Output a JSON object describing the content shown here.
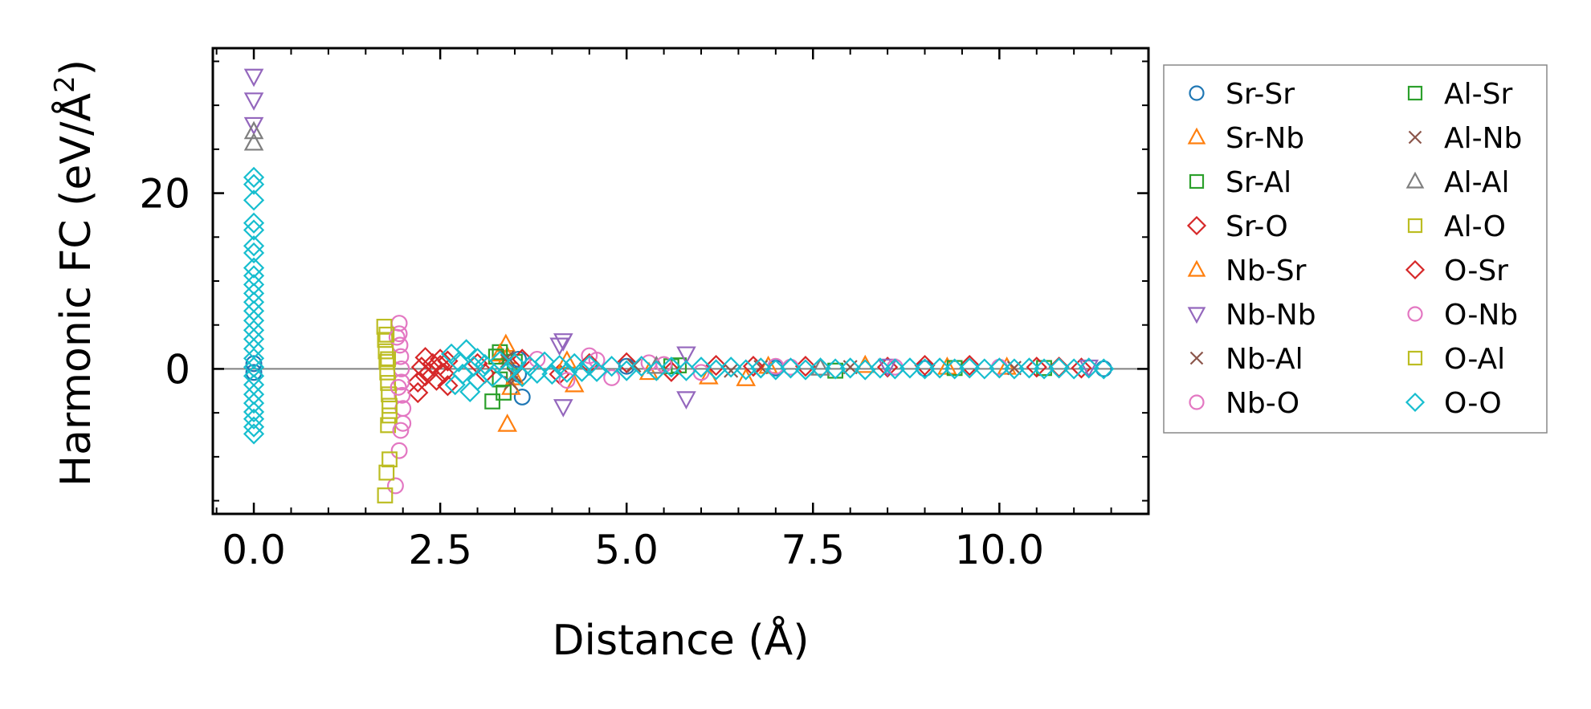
{
  "chart_data": {
    "type": "scatter",
    "title": "",
    "xlabel": "Distance (Å)",
    "ylabel": "Harmonic FC (eV/Å²)",
    "ylabel_parts": {
      "main": "Harmonic FC (eV/Å",
      "sup": "2",
      "close": ")"
    },
    "xlim": [
      -0.55,
      12.0
    ],
    "ylim": [
      -16.5,
      36.5
    ],
    "xticks": [
      0.0,
      2.5,
      5.0,
      7.5,
      10.0
    ],
    "xtick_labels": [
      "0.0",
      "2.5",
      "5.0",
      "7.5",
      "10.0"
    ],
    "yticks": [
      0,
      20
    ],
    "ytick_labels": [
      "0",
      "20"
    ],
    "zero_line": true,
    "legend_position": "outside-right",
    "series": [
      {
        "name": "Sr-Sr",
        "marker": "circle",
        "color": "#1f77b4",
        "points": [
          [
            0,
            0.6
          ],
          [
            0,
            -0.4
          ],
          [
            3.55,
            -0.6
          ],
          [
            3.6,
            -3.2
          ],
          [
            3.55,
            1.1
          ],
          [
            5.0,
            0.3
          ],
          [
            7.0,
            0.1
          ],
          [
            9.0,
            0.05
          ],
          [
            11.4,
            0.02
          ]
        ]
      },
      {
        "name": "Sr-Nb",
        "marker": "triangle-up",
        "color": "#ff7f0e",
        "points": [
          [
            3.38,
            2.8
          ],
          [
            3.4,
            -6.3
          ],
          [
            3.4,
            1.4
          ],
          [
            3.45,
            -2.1
          ],
          [
            4.3,
            -1.8
          ],
          [
            6.1,
            -0.9
          ],
          [
            6.6,
            -1.1
          ],
          [
            8.2,
            0.4
          ],
          [
            10.1,
            0.2
          ]
        ]
      },
      {
        "name": "Sr-Al",
        "marker": "square",
        "color": "#2ca02c",
        "points": [
          [
            3.2,
            -3.7
          ],
          [
            3.3,
            1.9
          ],
          [
            3.3,
            -1.2
          ],
          [
            3.5,
            0.8
          ],
          [
            5.7,
            0.4
          ],
          [
            7.8,
            -0.2
          ],
          [
            10.6,
            0.1
          ]
        ]
      },
      {
        "name": "Sr-O",
        "marker": "diamond",
        "color": "#d62728",
        "points": [
          [
            2.2,
            -2.7
          ],
          [
            2.2,
            -1.5
          ],
          [
            2.25,
            0.2
          ],
          [
            2.3,
            1.3
          ],
          [
            2.35,
            -0.4
          ],
          [
            2.4,
            0.6
          ],
          [
            2.45,
            -1.3
          ],
          [
            2.5,
            0.4
          ],
          [
            2.55,
            -0.5
          ],
          [
            2.6,
            0.9
          ],
          [
            2.6,
            -1.9
          ],
          [
            3.0,
            0.6
          ],
          [
            3.6,
            1.1
          ],
          [
            4.1,
            -0.6
          ],
          [
            5.0,
            0.7
          ],
          [
            5.6,
            -0.3
          ],
          [
            6.2,
            0.4
          ],
          [
            7.4,
            0.3
          ],
          [
            8.5,
            0.2
          ],
          [
            9.6,
            0.4
          ],
          [
            10.5,
            0.2
          ],
          [
            11.1,
            0.1
          ]
        ]
      },
      {
        "name": "Nb-Sr",
        "marker": "triangle-up",
        "color": "#ff7f0e",
        "points": [
          [
            3.3,
            1.7
          ],
          [
            3.5,
            -1.0
          ],
          [
            4.2,
            0.9
          ],
          [
            5.3,
            -0.4
          ],
          [
            6.9,
            0.3
          ],
          [
            9.3,
            0.2
          ]
        ]
      },
      {
        "name": "Nb-Nb",
        "marker": "triangle-down",
        "color": "#9467bd",
        "points": [
          [
            0,
            33.3
          ],
          [
            0,
            30.6
          ],
          [
            0,
            27.8
          ],
          [
            4.15,
            3.2
          ],
          [
            4.1,
            2.7
          ],
          [
            4.15,
            -4.3
          ],
          [
            5.8,
            1.7
          ],
          [
            5.8,
            -3.4
          ],
          [
            8.5,
            0.3
          ],
          [
            11.2,
            0.2
          ]
        ]
      },
      {
        "name": "Nb-Al",
        "marker": "x",
        "color": "#8c564b",
        "points": [
          [
            3.4,
            1.3
          ],
          [
            3.45,
            -1.6
          ],
          [
            5.1,
            0.4
          ],
          [
            6.4,
            -0.2
          ],
          [
            8.0,
            0.2
          ],
          [
            10.2,
            0.1
          ]
        ]
      },
      {
        "name": "Nb-O",
        "marker": "circle",
        "color": "#e377c2",
        "points": [
          [
            1.95,
            5.2
          ],
          [
            1.95,
            4.0
          ],
          [
            1.96,
            2.7
          ],
          [
            1.97,
            1.4
          ],
          [
            1.98,
            0.0
          ],
          [
            1.98,
            -1.5
          ],
          [
            1.99,
            -3.0
          ],
          [
            2.0,
            -4.5
          ],
          [
            2.0,
            -6.2
          ],
          [
            1.95,
            -9.3
          ],
          [
            1.9,
            -13.3
          ],
          [
            3.8,
            1.1
          ],
          [
            4.2,
            -1.3
          ],
          [
            4.5,
            1.5
          ],
          [
            4.8,
            -1.0
          ],
          [
            5.3,
            0.7
          ],
          [
            6.0,
            -0.4
          ],
          [
            7.0,
            0.3
          ],
          [
            8.6,
            0.2
          ],
          [
            10.0,
            0.2
          ]
        ]
      },
      {
        "name": "Al-Sr",
        "marker": "square",
        "color": "#2ca02c",
        "points": [
          [
            3.25,
            1.4
          ],
          [
            3.35,
            -2.7
          ],
          [
            5.6,
            0.3
          ],
          [
            9.4,
            0.1
          ]
        ]
      },
      {
        "name": "Al-Nb",
        "marker": "x",
        "color": "#8c564b",
        "points": [
          [
            3.4,
            0.9
          ],
          [
            3.5,
            -0.8
          ],
          [
            6.8,
            0.2
          ]
        ]
      },
      {
        "name": "Al-Al",
        "marker": "triangle-up",
        "color": "#7f7f7f",
        "points": [
          [
            0,
            27.0
          ],
          [
            0,
            25.7
          ],
          [
            5.4,
            0.3
          ],
          [
            7.6,
            0.1
          ]
        ]
      },
      {
        "name": "Al-O",
        "marker": "square",
        "color": "#bcbd22",
        "points": [
          [
            1.75,
            4.8
          ],
          [
            1.76,
            3.3
          ],
          [
            1.77,
            2.0
          ],
          [
            1.78,
            0.8
          ],
          [
            1.79,
            -0.4
          ],
          [
            1.8,
            -1.6
          ],
          [
            1.81,
            -2.9
          ],
          [
            1.82,
            -4.2
          ],
          [
            1.8,
            -6.4
          ],
          [
            1.82,
            -10.3
          ],
          [
            1.78,
            -11.8
          ],
          [
            1.76,
            -14.4
          ]
        ]
      },
      {
        "name": "O-Sr",
        "marker": "diamond",
        "color": "#d62728",
        "points": [
          [
            2.3,
            -0.8
          ],
          [
            2.5,
            1.1
          ],
          [
            3.1,
            -0.5
          ],
          [
            4.5,
            0.6
          ],
          [
            6.7,
            0.3
          ],
          [
            9.0,
            0.4
          ],
          [
            10.8,
            0.2
          ]
        ]
      },
      {
        "name": "O-Nb",
        "marker": "circle",
        "color": "#e377c2",
        "points": [
          [
            1.92,
            3.6
          ],
          [
            1.94,
            -2.1
          ],
          [
            1.97,
            -7.0
          ],
          [
            4.6,
            1.0
          ],
          [
            5.5,
            0.5
          ],
          [
            7.2,
            0.2
          ]
        ]
      },
      {
        "name": "O-Al",
        "marker": "square",
        "color": "#bcbd22",
        "points": [
          [
            1.8,
            1.1
          ],
          [
            1.82,
            -5.3
          ],
          [
            1.78,
            3.9
          ]
        ]
      },
      {
        "name": "O-O",
        "marker": "diamond",
        "color": "#17becf",
        "points": [
          [
            0,
            21.8
          ],
          [
            0,
            21.0
          ],
          [
            0,
            19.2
          ],
          [
            0,
            16.6
          ],
          [
            0,
            15.8
          ],
          [
            0,
            14.0
          ],
          [
            0,
            13.2
          ],
          [
            0,
            11.5
          ],
          [
            0,
            10.6
          ],
          [
            0,
            9.6
          ],
          [
            0,
            8.6
          ],
          [
            0,
            7.6
          ],
          [
            0,
            6.6
          ],
          [
            0,
            5.5
          ],
          [
            0,
            4.4
          ],
          [
            0,
            3.4
          ],
          [
            0,
            2.3
          ],
          [
            0,
            1.2
          ],
          [
            0,
            0.2
          ],
          [
            0,
            -0.8
          ],
          [
            0,
            -1.8
          ],
          [
            0,
            -2.9
          ],
          [
            0,
            -3.9
          ],
          [
            0,
            -4.9
          ],
          [
            0,
            -5.7
          ],
          [
            0,
            -6.6
          ],
          [
            0,
            -7.4
          ],
          [
            2.65,
            1.7
          ],
          [
            2.7,
            -1.8
          ],
          [
            2.75,
            0.8
          ],
          [
            2.8,
            -0.6
          ],
          [
            2.85,
            2.2
          ],
          [
            2.9,
            -2.6
          ],
          [
            2.95,
            0.3
          ],
          [
            3.0,
            1.2
          ],
          [
            3.0,
            -1.3
          ],
          [
            3.1,
            0.5
          ],
          [
            3.2,
            -0.9
          ],
          [
            3.3,
            0.9
          ],
          [
            3.4,
            -0.3
          ],
          [
            3.5,
            0.6
          ],
          [
            3.6,
            -0.9
          ],
          [
            3.7,
            0.3
          ],
          [
            3.8,
            -0.5
          ],
          [
            3.9,
            0.8
          ],
          [
            4.0,
            -0.6
          ],
          [
            4.1,
            0.4
          ],
          [
            4.2,
            -0.4
          ],
          [
            4.3,
            0.6
          ],
          [
            4.4,
            -0.3
          ],
          [
            4.5,
            0.4
          ],
          [
            4.6,
            -0.3
          ],
          [
            4.8,
            0.3
          ],
          [
            5.0,
            -0.2
          ],
          [
            5.2,
            0.3
          ],
          [
            5.4,
            -0.2
          ],
          [
            5.6,
            0.2
          ],
          [
            5.8,
            -0.2
          ],
          [
            6.0,
            0.2
          ],
          [
            6.2,
            -0.1
          ],
          [
            6.4,
            0.2
          ],
          [
            6.6,
            -0.1
          ],
          [
            6.8,
            0.1
          ],
          [
            7.0,
            -0.1
          ],
          [
            7.2,
            0.1
          ],
          [
            7.4,
            -0.1
          ],
          [
            7.6,
            0.1
          ],
          [
            7.8,
            0.0
          ],
          [
            8.0,
            0.1
          ],
          [
            8.2,
            -0.1
          ],
          [
            8.4,
            0.1
          ],
          [
            8.6,
            0.0
          ],
          [
            8.8,
            0.1
          ],
          [
            9.0,
            0.0
          ],
          [
            9.2,
            0.1
          ],
          [
            9.4,
            0.0
          ],
          [
            9.6,
            0.1
          ],
          [
            9.8,
            0.0
          ],
          [
            10.0,
            0.1
          ],
          [
            10.2,
            0.0
          ],
          [
            10.4,
            0.1
          ],
          [
            10.6,
            0.0
          ],
          [
            10.8,
            0.1
          ],
          [
            11.0,
            0.0
          ],
          [
            11.2,
            0.1
          ],
          [
            11.4,
            0.0
          ]
        ]
      }
    ]
  }
}
